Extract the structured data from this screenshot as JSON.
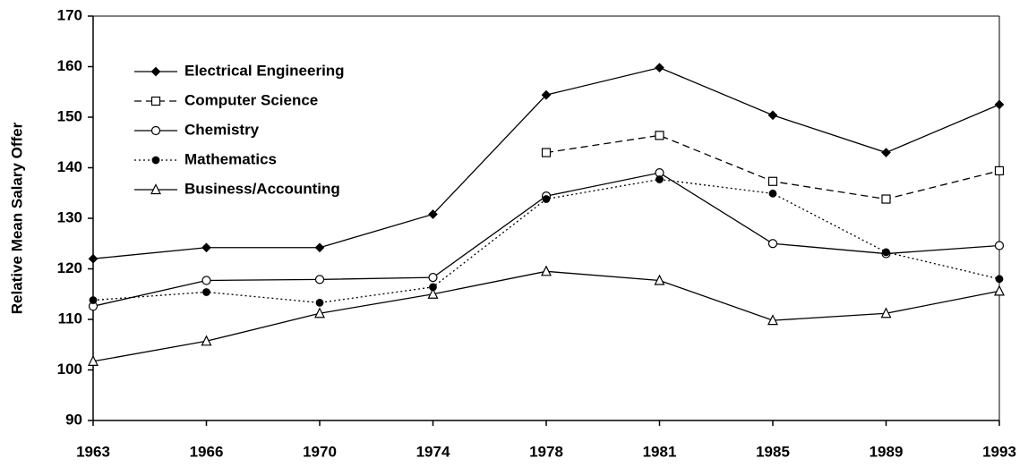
{
  "chart_data": {
    "type": "line",
    "y_label": "Relative Mean Salary Offer",
    "categories": [
      "1963",
      "1966",
      "1970",
      "1974",
      "1978",
      "1981",
      "1985",
      "1989",
      "1993"
    ],
    "series": [
      {
        "name": "Electrical Engineering",
        "color": "#000000",
        "line_style": "solid",
        "marker": "diamond",
        "values": [
          122,
          124.2,
          124.2,
          130.8,
          154.4,
          159.8,
          150.4,
          143,
          152.5
        ]
      },
      {
        "name": "Computer Science",
        "color": "#000000",
        "line_style": "dashed",
        "marker": "open-square",
        "values": [
          null,
          null,
          null,
          null,
          143,
          146.4,
          137.3,
          133.8,
          139.4
        ]
      },
      {
        "name": "Chemistry",
        "color": "#000000",
        "line_style": "solid",
        "marker": "open-circle",
        "values": [
          112.6,
          117.7,
          117.9,
          118.3,
          134.4,
          139,
          125,
          123,
          124.6
        ]
      },
      {
        "name": "Mathematics",
        "color": "#000000",
        "line_style": "dotted",
        "marker": "circle",
        "values": [
          113.8,
          115.4,
          113.3,
          116.4,
          133.8,
          137.7,
          134.9,
          123.3,
          118
        ]
      },
      {
        "name": "Business/Accounting",
        "color": "#000000",
        "line_style": "solid",
        "marker": "open-triangle",
        "values": [
          101.7,
          105.7,
          111.2,
          115,
          119.5,
          117.7,
          109.8,
          111.2,
          115.6
        ]
      }
    ],
    "ylim": [
      90,
      170
    ],
    "yticks": [
      90,
      100,
      110,
      120,
      130,
      140,
      150,
      160,
      170
    ],
    "grid": false,
    "legend": "upper left"
  }
}
